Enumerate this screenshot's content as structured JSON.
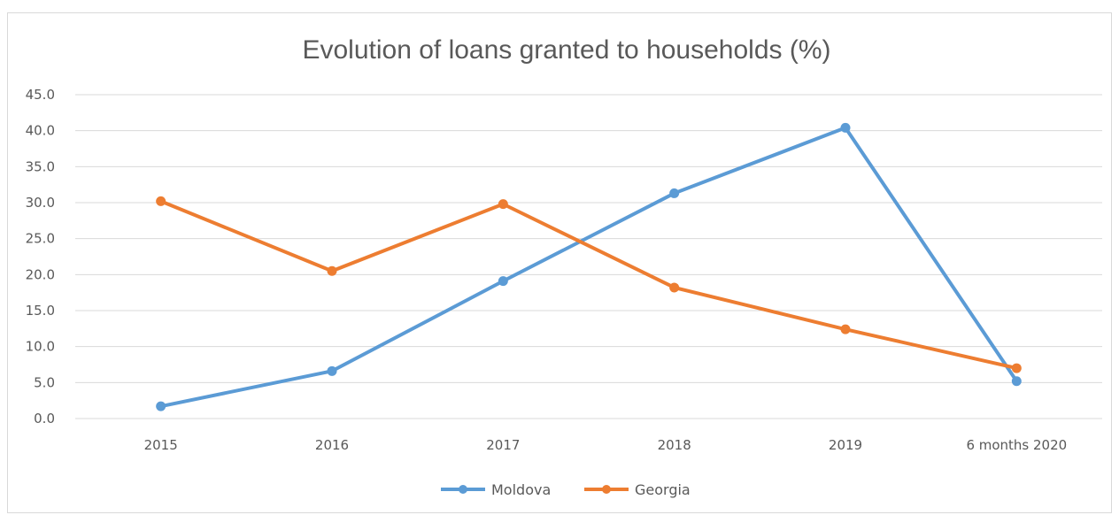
{
  "chart_data": {
    "type": "line",
    "title": "Evolution of loans granted to households (%)",
    "xlabel": "",
    "ylabel": "",
    "categories": [
      "2015",
      "2016",
      "2017",
      "2018",
      "2019",
      "6 months 2020"
    ],
    "ylim": [
      0,
      45
    ],
    "yticks": [
      "0.0",
      "5.0",
      "10.0",
      "15.0",
      "20.0",
      "25.0",
      "30.0",
      "35.0",
      "40.0",
      "45.0"
    ],
    "grid": true,
    "legend": "bottom-center",
    "series": [
      {
        "name": "Moldova",
        "color": "#5b9bd5",
        "values": [
          1.7,
          6.6,
          19.1,
          31.3,
          40.4,
          5.2
        ]
      },
      {
        "name": "Georgia",
        "color": "#ed7d31",
        "values": [
          30.2,
          20.5,
          29.8,
          18.2,
          12.4,
          7.0
        ]
      }
    ]
  }
}
